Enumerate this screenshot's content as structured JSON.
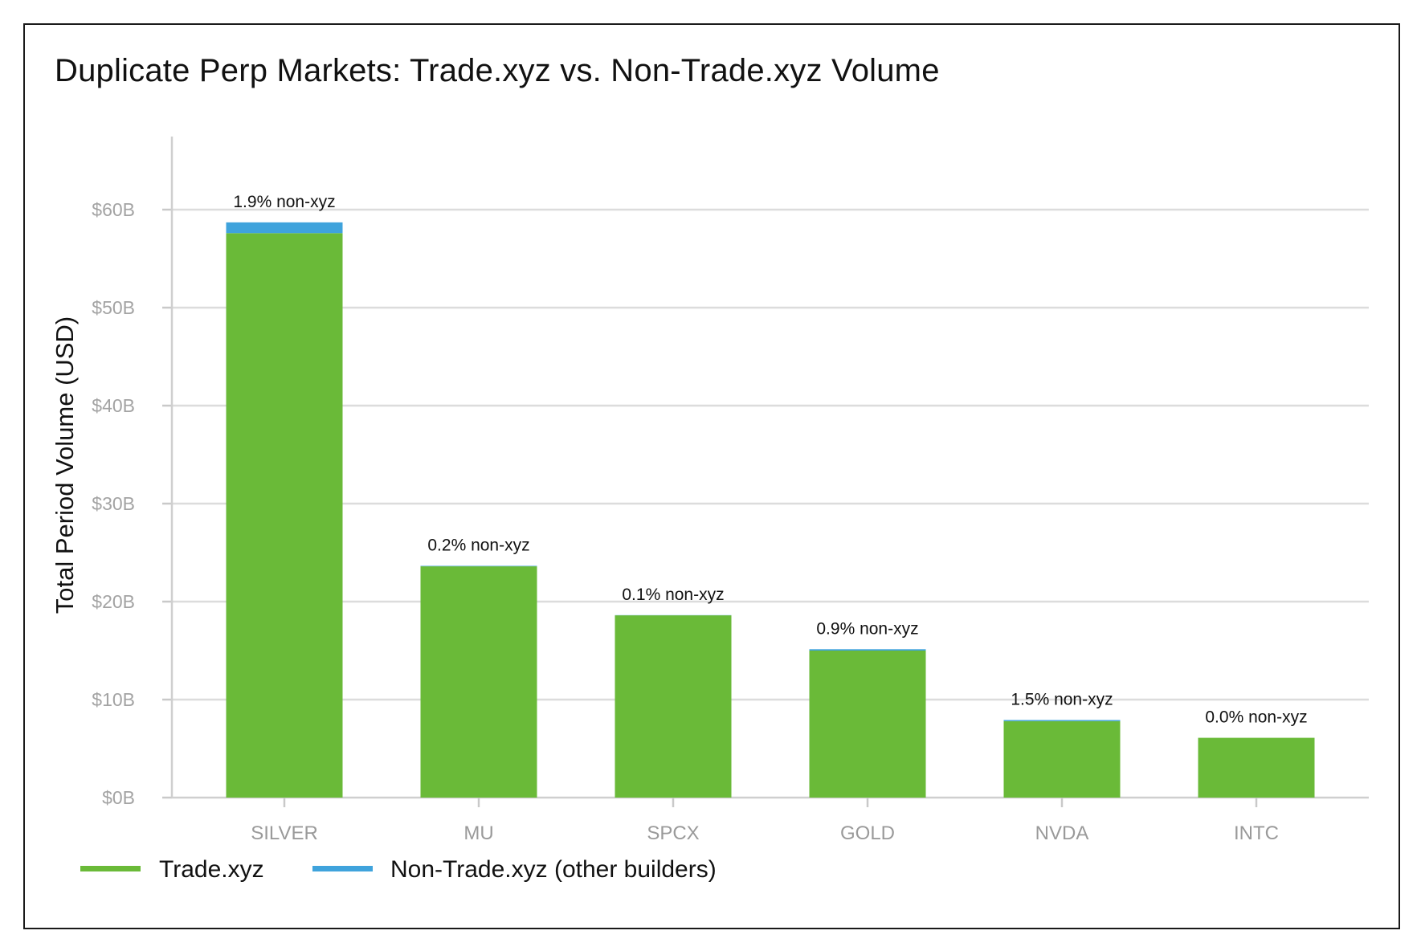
{
  "chart_data": {
    "type": "bar",
    "stacked": true,
    "title": "Duplicate Perp Markets: Trade.xyz vs. Non-Trade.xyz Volume",
    "xlabel": "",
    "ylabel": "Total Period Volume (USD)",
    "ylim": [
      0,
      67.5
    ],
    "yunit": "$B",
    "yticks": [
      0,
      10,
      20,
      30,
      40,
      50,
      60
    ],
    "ytick_labels": [
      "$0B",
      "$10B",
      "$20B",
      "$30B",
      "$40B",
      "$50B",
      "$60B"
    ],
    "grid": true,
    "categories": [
      "SILVER",
      "MU",
      "SPCX",
      "GOLD",
      "NVDA",
      "INTC"
    ],
    "series": [
      {
        "name": "Trade.xyz",
        "color": "#6aba38",
        "values": [
          57.6,
          23.6,
          18.6,
          15.0,
          7.8,
          6.1
        ]
      },
      {
        "name": "Non-Trade.xyz (other builders)",
        "color": "#3fa3dc",
        "values": [
          1.1,
          0.05,
          0.02,
          0.14,
          0.12,
          0.0
        ]
      }
    ],
    "annotations": [
      "1.9% non-xyz",
      "0.2% non-xyz",
      "0.1% non-xyz",
      "0.9% non-xyz",
      "1.5% non-xyz",
      "0.0% non-xyz"
    ],
    "legend_position": "bottom-left"
  }
}
